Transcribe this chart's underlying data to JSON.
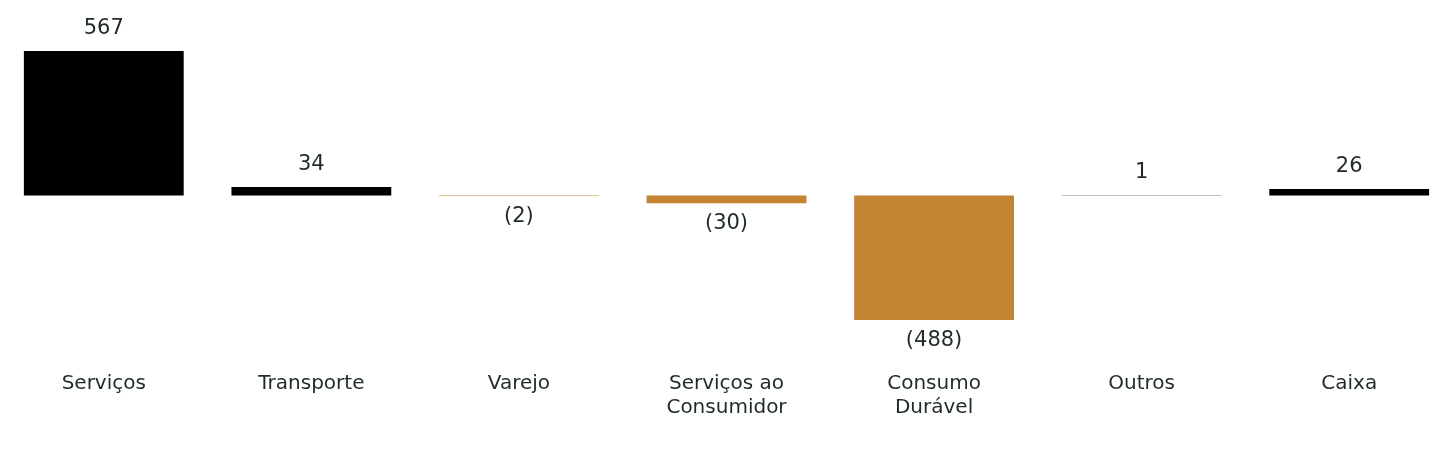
{
  "chart_data": {
    "type": "bar",
    "categories": [
      "Serviços",
      "Transporte",
      "Varejo",
      "Serviços ao Consumidor",
      "Consumo Durável",
      "Outros",
      "Caixa"
    ],
    "values": [
      567,
      34,
      -2,
      -30,
      -488,
      1,
      26
    ],
    "colors": [
      "#000000",
      "#000000",
      "#c38433",
      "#c38433",
      "#c38433",
      "#000000",
      "#000000"
    ],
    "value_labels": [
      "567",
      "34",
      "(2)",
      "(30)",
      "(488)",
      "1",
      "26"
    ],
    "grid": false,
    "legend": false
  }
}
